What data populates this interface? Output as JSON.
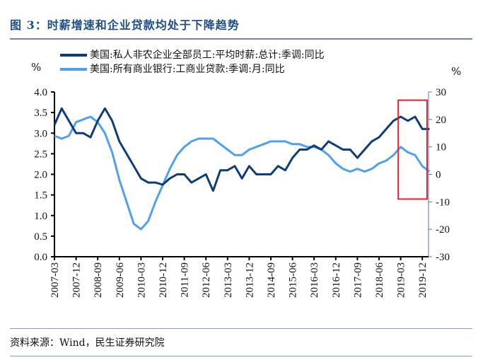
{
  "title": "图 3：时薪增速和企业贷款均处于下降趋势",
  "source": "资料来源：Wind，民生证券研究院",
  "chart_data": {
    "type": "line",
    "title": "图 3：时薪增速和企业贷款均处于下降趋势",
    "left_unit": "%",
    "right_unit": "%",
    "left_ylim": [
      0,
      4
    ],
    "right_ylim": [
      -30,
      30
    ],
    "left_ticks": [
      "0.0",
      "0.5",
      "1.0",
      "1.5",
      "2.0",
      "2.5",
      "3.0",
      "3.5",
      "4.0"
    ],
    "right_ticks": [
      "-30",
      "-20",
      "-10",
      "0",
      "10",
      "20",
      "30"
    ],
    "x_ticks": [
      "2007-03",
      "2007-12",
      "2008-09",
      "2009-06",
      "2010-03",
      "2010-12",
      "2011-09",
      "2012-06",
      "2013-03",
      "2013-12",
      "2014-09",
      "2015-06",
      "2016-03",
      "2016-12",
      "2017-09",
      "2018-06",
      "2019-03",
      "2019-12"
    ],
    "x_start": "2007-03",
    "x_step_months": 3,
    "legend_placement": "top",
    "colors": {
      "wage": "#0f3d7a",
      "loan": "#4ea1ee",
      "highlight": "#e8202a"
    },
    "series": [
      {
        "name": "美国:私人非农企业全部员工:平均时薪:总计:季调:同比",
        "axis": "left",
        "values": [
          3.2,
          3.6,
          3.3,
          3.0,
          3.0,
          2.9,
          3.3,
          3.6,
          3.3,
          2.8,
          2.5,
          2.2,
          1.9,
          1.8,
          1.8,
          1.75,
          1.9,
          2.0,
          2.0,
          1.8,
          1.9,
          2.0,
          1.6,
          2.1,
          2.1,
          2.2,
          1.9,
          2.2,
          2.0,
          2.0,
          2.0,
          2.2,
          2.1,
          2.4,
          2.6,
          2.6,
          2.7,
          2.6,
          2.8,
          2.7,
          2.6,
          2.6,
          2.4,
          2.6,
          2.8,
          2.9,
          3.1,
          3.3,
          3.4,
          3.3,
          3.4,
          3.1,
          3.1
        ]
      },
      {
        "name": "美国:所有商业银行:工商业贷款:季调:月:同比",
        "axis": "right",
        "values": [
          14,
          13,
          14,
          19,
          20,
          21,
          19,
          15,
          8,
          -2,
          -10,
          -18,
          -20,
          -17,
          -10,
          -4,
          2,
          7,
          10,
          12,
          13,
          13,
          13,
          11,
          9,
          7,
          7,
          9,
          10,
          11,
          12,
          12,
          12,
          11,
          11,
          10,
          10,
          9,
          7,
          4,
          2,
          1,
          2,
          1,
          2,
          4,
          5,
          7,
          10,
          8,
          7,
          3,
          1
        ]
      }
    ],
    "annotations": [
      {
        "type": "highlight-box",
        "x_range": [
          "2019-02",
          "2020-02"
        ],
        "right_axis_range": [
          -9,
          27
        ]
      }
    ]
  }
}
